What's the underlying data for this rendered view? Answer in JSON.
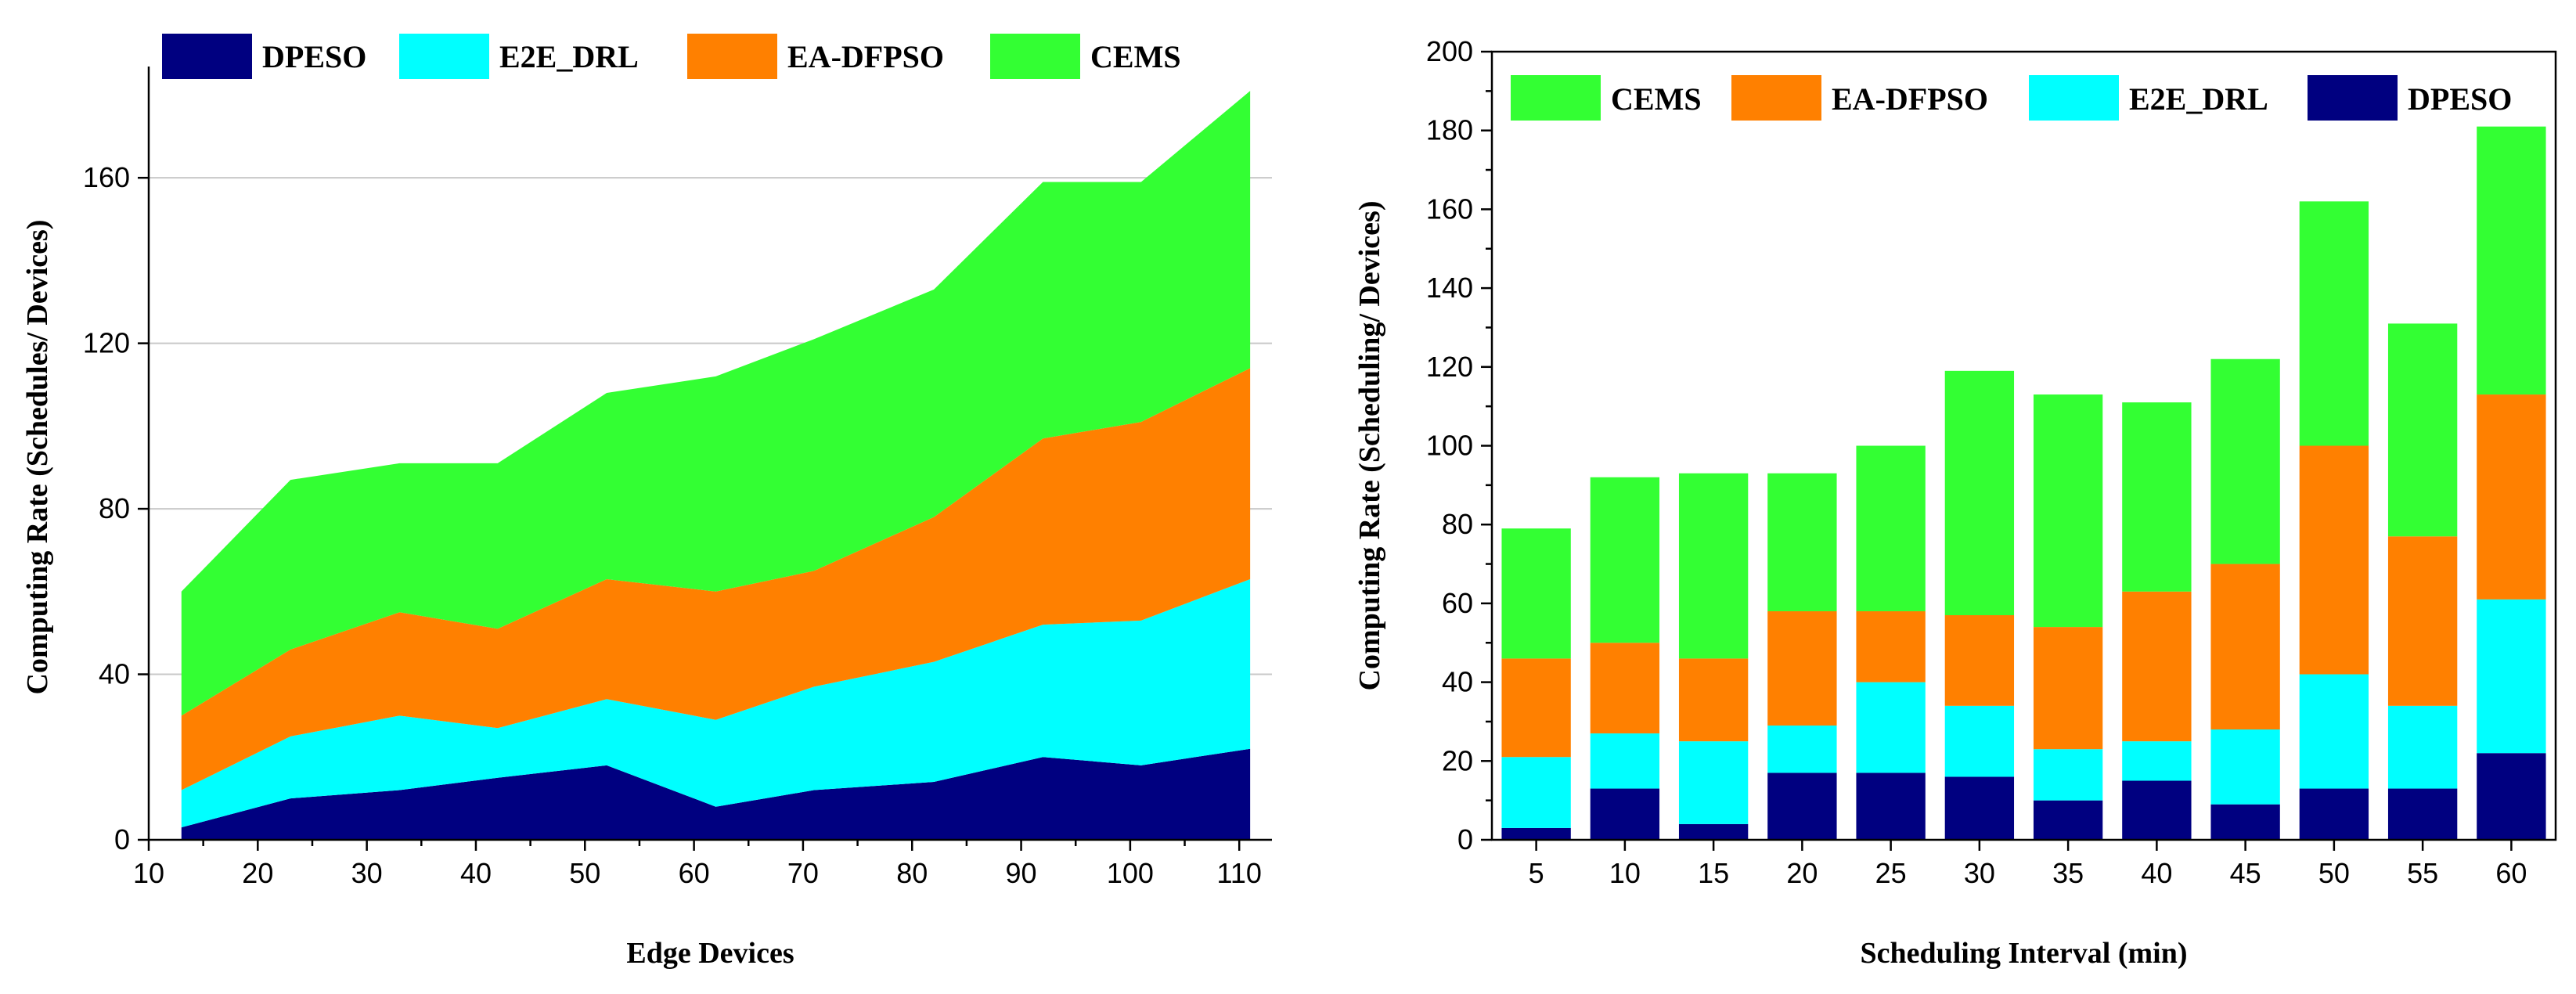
{
  "colors": {
    "DPESO": "#000080",
    "E2E_DRL": "#00ffff",
    "EA-DFPSO": "#ff8000",
    "CEMS": "#33ff33"
  },
  "chart_data": [
    {
      "type": "area",
      "stacked": true,
      "x": [
        13,
        23,
        33,
        42,
        52,
        62,
        71,
        82,
        92,
        101,
        111
      ],
      "series": [
        {
          "name": "DPESO",
          "values": [
            3,
            10,
            12,
            15,
            18,
            8,
            12,
            14,
            20,
            18,
            22
          ]
        },
        {
          "name": "E2E_DRL",
          "values": [
            9,
            15,
            18,
            12,
            16,
            21,
            25,
            29,
            32,
            35,
            41
          ]
        },
        {
          "name": "EA-DFPSO",
          "values": [
            18,
            21,
            25,
            24,
            29,
            31,
            28,
            35,
            45,
            48,
            51
          ]
        },
        {
          "name": "CEMS",
          "values": [
            30,
            41,
            36,
            40,
            45,
            52,
            56,
            55,
            62,
            58,
            67
          ]
        }
      ],
      "legend_order": [
        "DPESO",
        "E2E_DRL",
        "EA-DFPSO",
        "CEMS"
      ],
      "xlabel": "Edge Devices",
      "ylabel": "Computing Rate (Schedules/ Devices)",
      "xlim": [
        10,
        113
      ],
      "ylim": [
        0,
        185
      ],
      "xticks": [
        10,
        20,
        30,
        40,
        50,
        60,
        70,
        80,
        90,
        100,
        110
      ],
      "yticks": [
        0,
        40,
        80,
        120,
        160
      ],
      "grid": true,
      "legend_position": "top-left"
    },
    {
      "type": "bar",
      "stacked": true,
      "categories": [
        "5",
        "10",
        "15",
        "20",
        "25",
        "30",
        "35",
        "40",
        "45",
        "50",
        "55",
        "60"
      ],
      "series": [
        {
          "name": "DPESO",
          "values": [
            3,
            13,
            4,
            17,
            17,
            16,
            10,
            15,
            9,
            13,
            13,
            22
          ]
        },
        {
          "name": "E2E_DRL",
          "values": [
            18,
            14,
            21,
            12,
            23,
            18,
            13,
            10,
            19,
            29,
            21,
            39
          ]
        },
        {
          "name": "EA-DFPSO",
          "values": [
            25,
            23,
            21,
            29,
            18,
            23,
            31,
            38,
            42,
            58,
            43,
            52
          ]
        },
        {
          "name": "CEMS",
          "values": [
            33,
            42,
            47,
            35,
            42,
            62,
            59,
            48,
            52,
            62,
            54,
            68
          ]
        }
      ],
      "legend_order": [
        "CEMS",
        "EA-DFPSO",
        "E2E_DRL",
        "DPESO"
      ],
      "xlabel": "Scheduling Interval (min)",
      "ylabel": "Computing Rate (Scheduling/ Devices)",
      "ylim": [
        0,
        200
      ],
      "yticks": [
        0,
        20,
        40,
        60,
        80,
        100,
        120,
        140,
        160,
        180,
        200
      ],
      "grid": false,
      "legend_position": "top"
    }
  ]
}
